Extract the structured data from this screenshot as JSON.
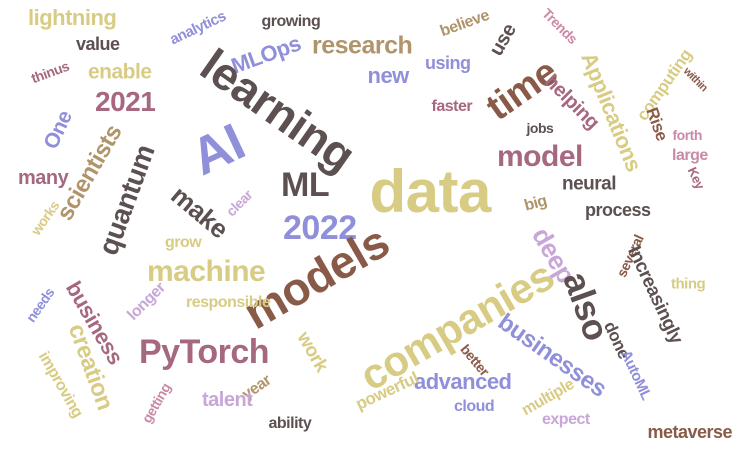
{
  "palette": {
    "khaki": "#d8cc84",
    "brown": "#8a5a48",
    "mauve": "#a66880",
    "rose": "#c98aa8",
    "periwinkle": "#8f8fda",
    "dark": "#5c5050",
    "tan": "#b0946a",
    "lilac": "#c8a6d8"
  },
  "words": [
    {
      "text": "lightning",
      "color": "khaki"
    },
    {
      "text": "analytics",
      "color": "periwinkle"
    },
    {
      "text": "growing",
      "color": "dark"
    },
    {
      "text": "believe",
      "color": "tan"
    },
    {
      "text": "Trends",
      "color": "rose"
    },
    {
      "text": "value",
      "color": "dark"
    },
    {
      "text": "MLOps",
      "color": "periwinkle"
    },
    {
      "text": "research",
      "color": "tan"
    },
    {
      "text": "new",
      "color": "periwinkle"
    },
    {
      "text": "using",
      "color": "periwinkle"
    },
    {
      "text": "use",
      "color": "dark"
    },
    {
      "text": "enable",
      "color": "khaki"
    },
    {
      "text": "thinus",
      "color": "mauve"
    },
    {
      "text": "2021",
      "color": "mauve"
    },
    {
      "text": "learning",
      "color": "dark"
    },
    {
      "text": "time",
      "color": "brown"
    },
    {
      "text": "Applications",
      "color": "khaki"
    },
    {
      "text": "computing",
      "color": "khaki"
    },
    {
      "text": "within",
      "color": "brown"
    },
    {
      "text": "One",
      "color": "periwinkle"
    },
    {
      "text": "faster",
      "color": "mauve"
    },
    {
      "text": "helping",
      "color": "mauve"
    },
    {
      "text": "Rise",
      "color": "brown"
    },
    {
      "text": "jobs",
      "color": "dark"
    },
    {
      "text": "forth",
      "color": "rose"
    },
    {
      "text": "AI",
      "color": "periwinkle"
    },
    {
      "text": "model",
      "color": "mauve"
    },
    {
      "text": "large",
      "color": "rose"
    },
    {
      "text": "Key",
      "color": "mauve"
    },
    {
      "text": "scientists",
      "color": "tan"
    },
    {
      "text": "quantum",
      "color": "dark"
    },
    {
      "text": "many",
      "color": "mauve"
    },
    {
      "text": "ML",
      "color": "dark"
    },
    {
      "text": "data",
      "color": "khaki"
    },
    {
      "text": "neural",
      "color": "dark"
    },
    {
      "text": "make",
      "color": "dark"
    },
    {
      "text": "clear",
      "color": "lilac"
    },
    {
      "text": "2022",
      "color": "periwinkle"
    },
    {
      "text": "big",
      "color": "tan"
    },
    {
      "text": "process",
      "color": "dark"
    },
    {
      "text": "works",
      "color": "khaki"
    },
    {
      "text": "grow",
      "color": "khaki"
    },
    {
      "text": "several",
      "color": "brown"
    },
    {
      "text": "deep",
      "color": "lilac"
    },
    {
      "text": "Increasingly",
      "color": "dark"
    },
    {
      "text": "machine",
      "color": "khaki"
    },
    {
      "text": "thing",
      "color": "khaki"
    },
    {
      "text": "models",
      "color": "brown"
    },
    {
      "text": "companies",
      "color": "khaki"
    },
    {
      "text": "needs",
      "color": "periwinkle"
    },
    {
      "text": "longer",
      "color": "lilac"
    },
    {
      "text": "responsible",
      "color": "khaki"
    },
    {
      "text": "business",
      "color": "mauve"
    },
    {
      "text": "also",
      "color": "dark"
    },
    {
      "text": "done",
      "color": "dark"
    },
    {
      "text": "businesses",
      "color": "periwinkle"
    },
    {
      "text": "PyTorch",
      "color": "mauve"
    },
    {
      "text": "creation",
      "color": "khaki"
    },
    {
      "text": "improving",
      "color": "khaki"
    },
    {
      "text": "work",
      "color": "khaki"
    },
    {
      "text": "advanced",
      "color": "periwinkle"
    },
    {
      "text": "better",
      "color": "brown"
    },
    {
      "text": "AutoML",
      "color": "periwinkle"
    },
    {
      "text": "year",
      "color": "tan"
    },
    {
      "text": "talent",
      "color": "lilac"
    },
    {
      "text": "getting",
      "color": "rose"
    },
    {
      "text": "powerful",
      "color": "khaki"
    },
    {
      "text": "multiple",
      "color": "khaki"
    },
    {
      "text": "cloud",
      "color": "periwinkle"
    },
    {
      "text": "expect",
      "color": "lilac"
    },
    {
      "text": "ability",
      "color": "dark"
    },
    {
      "text": "metaverse",
      "color": "brown"
    }
  ]
}
